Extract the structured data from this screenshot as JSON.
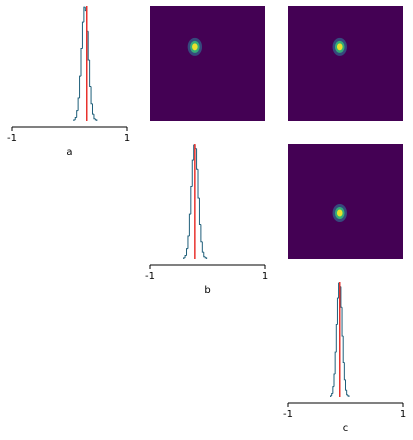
{
  "chart_data": [
    {
      "type": "hist",
      "xlabel": "a",
      "xlim": [
        -1,
        1
      ],
      "xticks": [
        -1,
        1
      ],
      "ylim": [
        0,
        100
      ],
      "color": "#1f5f7a",
      "truth": 0.3,
      "truth_color": "#e8322d",
      "bins": [
        0.075,
        0.1,
        0.125,
        0.15,
        0.175,
        0.2,
        0.225,
        0.25,
        0.275,
        0.3,
        0.325,
        0.35,
        0.375,
        0.4,
        0.425,
        0.45,
        0.475
      ],
      "counts": [
        1,
        3,
        9,
        20,
        39,
        63,
        86,
        99,
        96,
        78,
        53,
        30,
        15,
        6,
        2,
        1
      ]
    },
    {
      "type": "density",
      "xlim": [
        -1,
        1
      ],
      "ylim": [
        -1,
        1
      ],
      "x": -0.22,
      "y": 0.29,
      "colormap": [
        "#440154",
        "#31688e",
        "#35b779",
        "#fde725"
      ]
    },
    {
      "type": "density",
      "xlim": [
        -1,
        1
      ],
      "ylim": [
        -1,
        1
      ],
      "x": -0.1,
      "y": 0.29,
      "colormap": [
        "#440154",
        "#31688e",
        "#35b779",
        "#fde725"
      ]
    },
    {
      "type": "hist",
      "xlabel": "b",
      "xlim": [
        -1,
        1
      ],
      "xticks": [
        -1,
        1
      ],
      "ylim": [
        0,
        100
      ],
      "color": "#1f5f7a",
      "truth": -0.22,
      "truth_color": "#e8322d",
      "bins": [
        -0.415,
        -0.39,
        -0.365,
        -0.34,
        -0.315,
        -0.29,
        -0.265,
        -0.24,
        -0.215,
        -0.19,
        -0.165,
        -0.14,
        -0.115,
        -0.09,
        -0.065,
        -0.04,
        -0.015
      ],
      "counts": [
        1,
        3,
        9,
        20,
        39,
        63,
        86,
        99,
        96,
        78,
        53,
        30,
        15,
        6,
        2,
        1
      ]
    },
    {
      "type": "density",
      "xlim": [
        -1,
        1
      ],
      "ylim": [
        -1,
        1
      ],
      "x": -0.1,
      "y": -0.2,
      "colormap": [
        "#440154",
        "#31688e",
        "#35b779",
        "#fde725"
      ]
    },
    {
      "type": "hist",
      "xlabel": "c",
      "xlim": [
        -1,
        1
      ],
      "xticks": [
        -1,
        1
      ],
      "ylim": [
        0,
        100
      ],
      "color": "#1f5f7a",
      "truth": -0.1,
      "truth_color": "#e8322d",
      "bins": [
        -0.26,
        -0.24,
        -0.22,
        -0.2,
        -0.18,
        -0.16,
        -0.14,
        -0.12,
        -0.1,
        -0.08,
        -0.06,
        -0.04,
        -0.02,
        0,
        0.02,
        0.04,
        0.06
      ],
      "counts": [
        1,
        3,
        9,
        20,
        39,
        63,
        86,
        99,
        96,
        78,
        53,
        30,
        15,
        6,
        2,
        1
      ]
    }
  ]
}
